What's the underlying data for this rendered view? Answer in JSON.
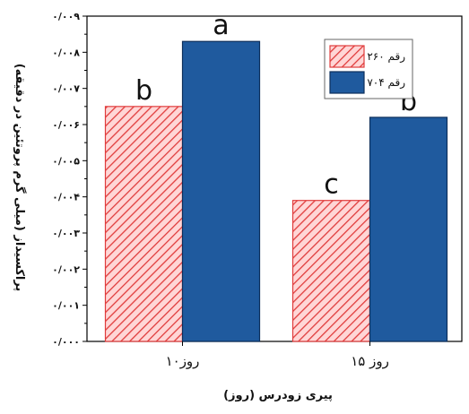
{
  "chart_data": {
    "type": "bar",
    "title": "",
    "xlabel": "پیری زودرس (روز)",
    "ylabel": "پراکسیداز (میلی گرم پروتئین در دقیقه)",
    "categories": [
      "۱۰روز",
      "۱۵ روز"
    ],
    "ylim": [
      0,
      0.009
    ],
    "yticks": [
      0,
      0.001,
      0.002,
      0.003,
      0.004,
      0.005,
      0.006,
      0.007,
      0.008,
      0.009
    ],
    "ytick_labels": [
      "۰/۰۰۰",
      "۰/۰۰۱",
      "۰/۰۰۲",
      "۰/۰۰۳",
      "۰/۰۰۴",
      "۰/۰۰۵",
      "۰/۰۰۶",
      "۰/۰۰۷",
      "۰/۰۰۸",
      "۰/۰۰۹"
    ],
    "series": [
      {
        "name": "رقم ۲۶۰",
        "values": [
          0.0065,
          0.0039
        ],
        "letters": [
          "b",
          "c"
        ],
        "color": "#e03c3c",
        "fill": "#ffd0d0",
        "pattern": "hatch"
      },
      {
        "name": "رقم ۷۰۴",
        "values": [
          0.0083,
          0.0062
        ],
        "letters": [
          "a",
          "b"
        ],
        "color": "#1f4e8c",
        "fill": "#1f5a9e",
        "pattern": "solid"
      }
    ],
    "legend_position": "top-right",
    "grid": false
  }
}
